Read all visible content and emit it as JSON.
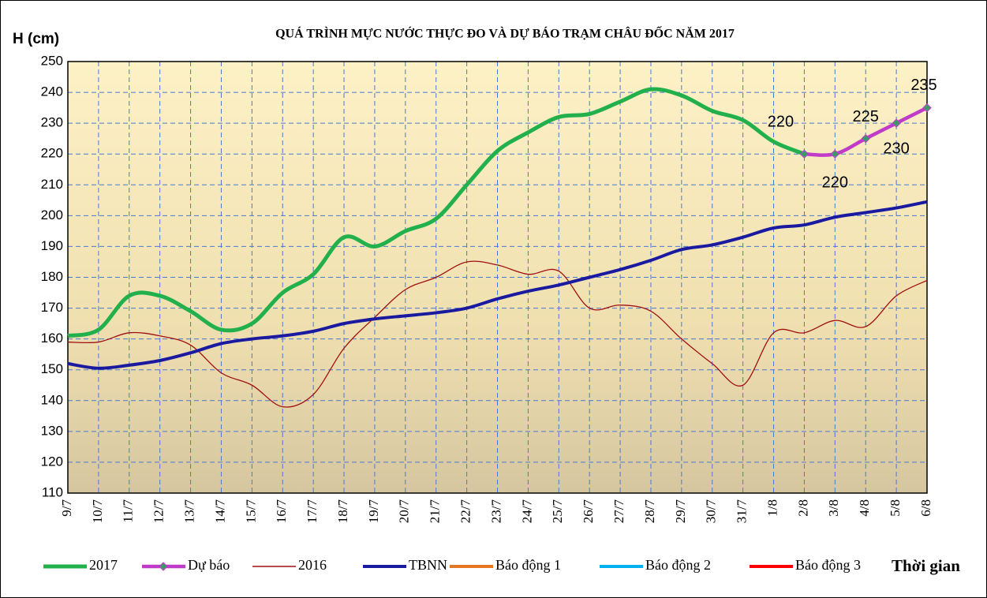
{
  "chart_data": {
    "type": "line",
    "title": "QUÁ TRÌNH MỰC NƯỚC THỰC ĐO VÀ DỰ BÁO TRẠM CHÂU ĐỐC  NĂM 2017",
    "y_label": "H (cm)",
    "x_label": "Thời gian",
    "categories": [
      "9/7",
      "10/7",
      "11/7",
      "12/7",
      "13/7",
      "14/7",
      "15/7",
      "16/7",
      "17/7",
      "18/7",
      "19/7",
      "20/7",
      "21/7",
      "22/7",
      "23/7",
      "24/7",
      "25/7",
      "26/7",
      "27/7",
      "28/7",
      "29/7",
      "30/7",
      "31/7",
      "1/8",
      "2/8",
      "3/8",
      "4/8",
      "5/8",
      "6/8"
    ],
    "ylim": [
      110,
      250
    ],
    "yticks": [
      110,
      120,
      130,
      140,
      150,
      160,
      170,
      180,
      190,
      200,
      210,
      220,
      230,
      240,
      250
    ],
    "grid": true,
    "series": [
      {
        "name": "2017",
        "color": "#22b04c",
        "values": [
          161,
          163,
          174,
          174,
          169,
          163,
          165,
          175,
          181,
          193,
          190,
          195,
          199,
          210,
          221,
          227,
          232,
          233,
          237,
          241,
          239,
          234,
          231,
          224,
          220,
          null,
          null,
          null,
          null
        ]
      },
      {
        "name": "Dự báo",
        "color": "#c03cc8",
        "marker": "diamond",
        "values": [
          null,
          null,
          null,
          null,
          null,
          null,
          null,
          null,
          null,
          null,
          null,
          null,
          null,
          null,
          null,
          null,
          null,
          null,
          null,
          null,
          null,
          null,
          null,
          null,
          220,
          220,
          225,
          230,
          235
        ]
      },
      {
        "name": "2016",
        "color": "#a01010",
        "values": [
          159,
          159,
          162,
          161,
          158,
          149,
          145,
          138,
          142,
          157,
          167,
          176,
          180,
          185,
          184,
          181,
          182,
          170,
          171,
          169,
          160,
          152,
          145,
          162,
          162,
          166,
          164,
          174,
          179
        ]
      },
      {
        "name": "TBNN",
        "color": "#1a1aa0",
        "values": [
          152,
          150.5,
          151.5,
          153,
          155.5,
          158.5,
          160,
          161,
          162.5,
          165,
          166.5,
          167.5,
          168.5,
          170,
          173,
          175.5,
          177.5,
          180,
          182.5,
          185.5,
          189,
          190.5,
          193,
          196,
          197,
          199.5,
          201,
          202.5,
          204.5
        ]
      },
      {
        "name": "Báo động 1",
        "color": "#e87722",
        "values": [
          null,
          null,
          null,
          null,
          null,
          null,
          null,
          null,
          null,
          null,
          null,
          null,
          null,
          null,
          null,
          null,
          null,
          null,
          null,
          null,
          null,
          null,
          null,
          null,
          null,
          null,
          null,
          null,
          null
        ]
      },
      {
        "name": "Báo động 2",
        "color": "#00b0f0",
        "values": [
          null,
          null,
          null,
          null,
          null,
          null,
          null,
          null,
          null,
          null,
          null,
          null,
          null,
          null,
          null,
          null,
          null,
          null,
          null,
          null,
          null,
          null,
          null,
          null,
          null,
          null,
          null,
          null,
          null
        ]
      },
      {
        "name": "Báo động 3",
        "color": "#ff0000",
        "values": [
          null,
          null,
          null,
          null,
          null,
          null,
          null,
          null,
          null,
          null,
          null,
          null,
          null,
          null,
          null,
          null,
          null,
          null,
          null,
          null,
          null,
          null,
          null,
          null,
          null,
          null,
          null,
          null,
          null
        ]
      }
    ]
  }
}
